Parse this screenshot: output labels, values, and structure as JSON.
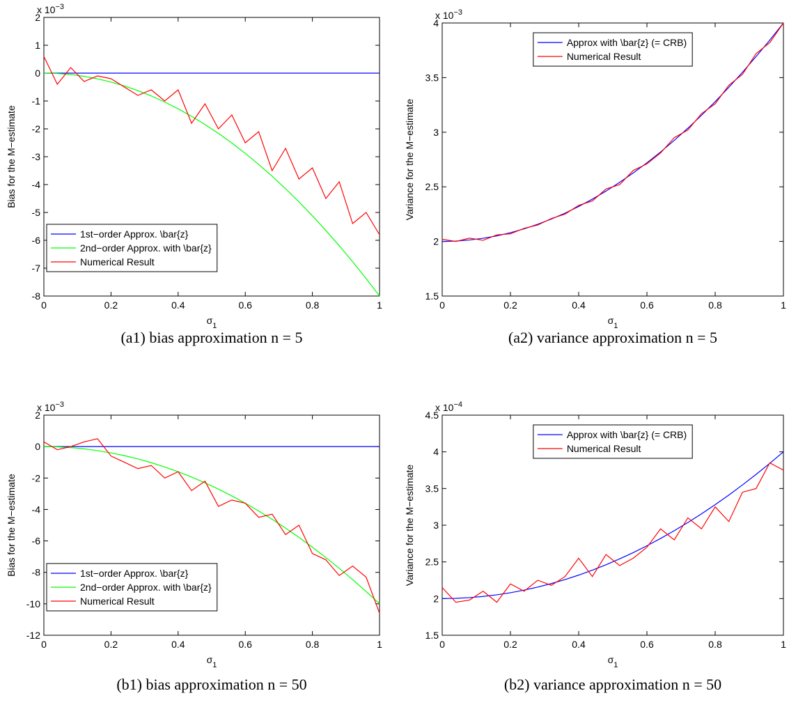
{
  "chart_data": [
    {
      "type": "line",
      "caption": "(a1) bias approximation n = 5",
      "ylabel": "Bias for the M−estimate",
      "xlabel": "σ",
      "xlabel_sub": "1",
      "y_multiplier": "x 10",
      "y_multiplier_exp": "−3",
      "x": [
        0,
        0.04,
        0.08,
        0.12,
        0.16,
        0.2,
        0.24,
        0.28,
        0.32,
        0.36,
        0.4,
        0.44,
        0.48,
        0.52,
        0.56,
        0.6,
        0.64,
        0.68,
        0.72,
        0.76,
        0.8,
        0.84,
        0.88,
        0.92,
        0.96,
        1
      ],
      "series": [
        {
          "name": "1st−order Approx. \\bar{z}",
          "color": "#0000ff",
          "values": [
            0,
            0,
            0,
            0,
            0,
            0,
            0,
            0,
            0,
            0,
            0,
            0,
            0,
            0,
            0,
            0,
            0,
            0,
            0,
            0,
            0,
            0,
            0,
            0,
            0,
            0
          ]
        },
        {
          "name": "2nd−order Approx. with \\bar{z}",
          "color": "#00ff00",
          "values": [
            0,
            -0.013,
            -0.051,
            -0.115,
            -0.205,
            -0.32,
            -0.461,
            -0.627,
            -0.819,
            -1.037,
            -1.28,
            -1.549,
            -1.843,
            -2.163,
            -2.509,
            -2.88,
            -3.277,
            -3.699,
            -4.147,
            -4.621,
            -5.12,
            -5.645,
            -6.195,
            -6.771,
            -7.373,
            -8
          ]
        },
        {
          "name": "Numerical Result",
          "color": "#ff0000",
          "values": [
            0.6,
            -0.4,
            0.2,
            -0.3,
            -0.1,
            -0.2,
            -0.5,
            -0.8,
            -0.6,
            -1.0,
            -0.6,
            -1.8,
            -1.1,
            -2.0,
            -1.5,
            -2.5,
            -2.1,
            -3.5,
            -2.7,
            -3.8,
            -3.4,
            -4.5,
            -3.9,
            -5.4,
            -5.0,
            -5.8
          ]
        }
      ],
      "xlim": [
        0,
        1
      ],
      "xticks": [
        0,
        0.2,
        0.4,
        0.6,
        0.8,
        1
      ],
      "ylim": [
        -8,
        2
      ],
      "yticks": [
        -8,
        -7,
        -6,
        -5,
        -4,
        -3,
        -2,
        -1,
        0,
        1,
        2
      ],
      "legend": "lower left"
    },
    {
      "type": "line",
      "caption": "(a2) variance approximation n = 5",
      "ylabel": "Variance for the M−estimate",
      "xlabel": "σ",
      "xlabel_sub": "1",
      "y_multiplier": "x 10",
      "y_multiplier_exp": "−3",
      "x": [
        0,
        0.04,
        0.08,
        0.12,
        0.16,
        0.2,
        0.24,
        0.28,
        0.32,
        0.36,
        0.4,
        0.44,
        0.48,
        0.52,
        0.56,
        0.6,
        0.64,
        0.68,
        0.72,
        0.76,
        0.8,
        0.84,
        0.88,
        0.92,
        0.96,
        1
      ],
      "series": [
        {
          "name": "Approx with \\bar{z} (= CRB)",
          "color": "#0000ff",
          "values": [
            2,
            2.003,
            2.013,
            2.029,
            2.051,
            2.08,
            2.115,
            2.157,
            2.205,
            2.259,
            2.32,
            2.387,
            2.461,
            2.541,
            2.627,
            2.72,
            2.819,
            2.925,
            3.037,
            3.155,
            3.28,
            3.411,
            3.549,
            3.693,
            3.843,
            4
          ]
        },
        {
          "name": "Numerical Result",
          "color": "#ff0000",
          "values": [
            2.02,
            2.0,
            2.03,
            2.01,
            2.06,
            2.07,
            2.12,
            2.15,
            2.21,
            2.25,
            2.33,
            2.37,
            2.48,
            2.52,
            2.65,
            2.71,
            2.81,
            2.95,
            3.02,
            3.17,
            3.26,
            3.43,
            3.53,
            3.72,
            3.82,
            4.0
          ]
        }
      ],
      "xlim": [
        0,
        1
      ],
      "xticks": [
        0,
        0.2,
        0.4,
        0.6,
        0.8,
        1
      ],
      "ylim": [
        1.5,
        4
      ],
      "yticks": [
        1.5,
        2,
        2.5,
        3,
        3.5,
        4
      ],
      "legend": "upper center"
    },
    {
      "type": "line",
      "caption": "(b1) bias approximation n = 50",
      "ylabel": "Bias for the M−estimate",
      "xlabel": "σ",
      "xlabel_sub": "1",
      "y_multiplier": "x 10",
      "y_multiplier_exp": "−3",
      "x": [
        0,
        0.04,
        0.08,
        0.12,
        0.16,
        0.2,
        0.24,
        0.28,
        0.32,
        0.36,
        0.4,
        0.44,
        0.48,
        0.52,
        0.56,
        0.6,
        0.64,
        0.68,
        0.72,
        0.76,
        0.8,
        0.84,
        0.88,
        0.92,
        0.96,
        1
      ],
      "series": [
        {
          "name": "1st−order Approx. \\bar{z}",
          "color": "#0000ff",
          "values": [
            0,
            0,
            0,
            0,
            0,
            0,
            0,
            0,
            0,
            0,
            0,
            0,
            0,
            0,
            0,
            0,
            0,
            0,
            0,
            0,
            0,
            0,
            0,
            0,
            0,
            0
          ]
        },
        {
          "name": "2nd−order Approx. with \\bar{z}",
          "color": "#00ff00",
          "values": [
            0,
            -0.016,
            -0.064,
            -0.144,
            -0.256,
            -0.4,
            -0.576,
            -0.784,
            -1.024,
            -1.296,
            -1.6,
            -1.936,
            -2.304,
            -2.704,
            -3.136,
            -3.6,
            -4.096,
            -4.624,
            -5.184,
            -5.776,
            -6.4,
            -7.056,
            -7.744,
            -8.464,
            -9.216,
            -10
          ]
        },
        {
          "name": "Numerical Result",
          "color": "#ff0000",
          "values": [
            0.3,
            -0.2,
            0,
            0.3,
            0.5,
            -0.6,
            -1.0,
            -1.4,
            -1.2,
            -2.0,
            -1.6,
            -2.8,
            -2.2,
            -3.8,
            -3.4,
            -3.6,
            -4.5,
            -4.3,
            -5.6,
            -5.0,
            -6.8,
            -7.2,
            -8.2,
            -7.6,
            -8.3,
            -10.6
          ]
        }
      ],
      "xlim": [
        0,
        1
      ],
      "xticks": [
        0,
        0.2,
        0.4,
        0.6,
        0.8,
        1
      ],
      "ylim": [
        -12,
        2
      ],
      "yticks": [
        -12,
        -10,
        -8,
        -6,
        -4,
        -2,
        0,
        2
      ],
      "legend": "lower left"
    },
    {
      "type": "line",
      "caption": "(b2) variance approximation n = 50",
      "ylabel": "Variance for the M−estimate",
      "xlabel": "σ",
      "xlabel_sub": "1",
      "y_multiplier": "x 10",
      "y_multiplier_exp": "−4",
      "x": [
        0,
        0.04,
        0.08,
        0.12,
        0.16,
        0.2,
        0.24,
        0.28,
        0.32,
        0.36,
        0.4,
        0.44,
        0.48,
        0.52,
        0.56,
        0.6,
        0.64,
        0.68,
        0.72,
        0.76,
        0.8,
        0.84,
        0.88,
        0.92,
        0.96,
        1
      ],
      "series": [
        {
          "name": "Approx with \\bar{z} (= CRB)",
          "color": "#0000ff",
          "values": [
            2,
            2.003,
            2.013,
            2.029,
            2.051,
            2.08,
            2.115,
            2.157,
            2.205,
            2.259,
            2.32,
            2.387,
            2.461,
            2.541,
            2.627,
            2.72,
            2.819,
            2.925,
            3.037,
            3.155,
            3.28,
            3.411,
            3.549,
            3.693,
            3.843,
            4
          ]
        },
        {
          "name": "Numerical Result",
          "color": "#ff0000",
          "values": [
            2.15,
            1.95,
            1.98,
            2.1,
            1.95,
            2.2,
            2.1,
            2.25,
            2.18,
            2.3,
            2.55,
            2.3,
            2.6,
            2.45,
            2.55,
            2.7,
            2.95,
            2.8,
            3.1,
            2.95,
            3.25,
            3.05,
            3.45,
            3.5,
            3.85,
            3.75
          ]
        }
      ],
      "xlim": [
        0,
        1
      ],
      "xticks": [
        0,
        0.2,
        0.4,
        0.6,
        0.8,
        1
      ],
      "ylim": [
        1.5,
        4.5
      ],
      "yticks": [
        1.5,
        2,
        2.5,
        3,
        3.5,
        4,
        4.5
      ],
      "legend": "upper center"
    }
  ]
}
